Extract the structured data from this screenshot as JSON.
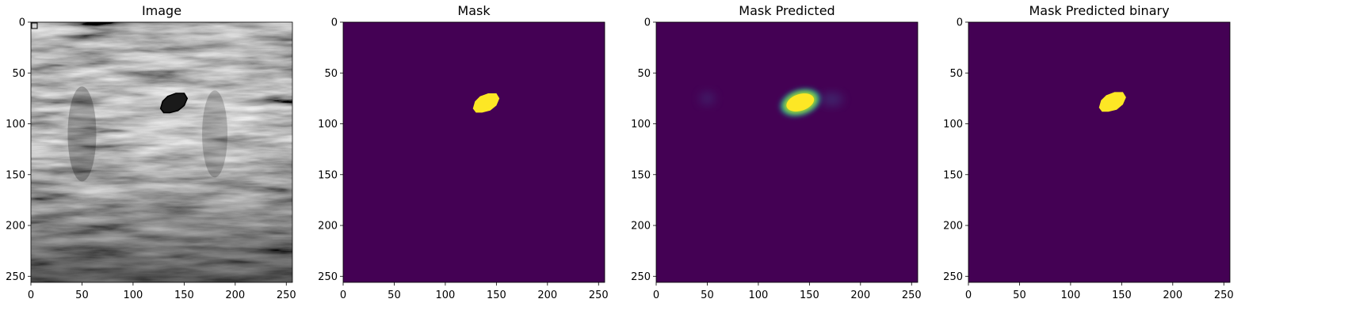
{
  "panels": [
    {
      "id": "image",
      "title": "Image",
      "kind": "ultrasound"
    },
    {
      "id": "mask",
      "title": "Mask",
      "kind": "mask"
    },
    {
      "id": "pred",
      "title": "Mask Predicted",
      "kind": "predicted"
    },
    {
      "id": "binary",
      "title": "Mask Predicted binary",
      "kind": "binary"
    }
  ],
  "axes": {
    "xticks": [
      "0",
      "50",
      "100",
      "150",
      "200",
      "250"
    ],
    "yticks": [
      "0",
      "50",
      "100",
      "150",
      "200",
      "250"
    ],
    "xlim": [
      0,
      256
    ],
    "ylim": [
      256,
      0
    ]
  },
  "colors": {
    "mask_background": "#440154",
    "mask_foreground": "#fde725",
    "contour": "#000000"
  }
}
